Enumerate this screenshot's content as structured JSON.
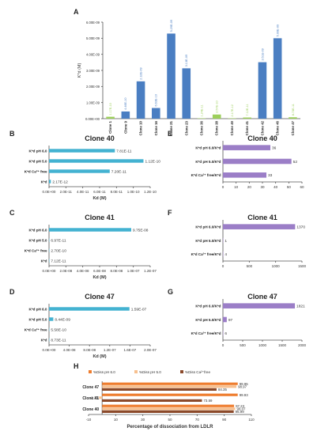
{
  "colors": {
    "blue": "#4a7ec2",
    "green": "#9ccf5a",
    "cyan": "#43b2d1",
    "purple": "#9b7ec7",
    "orange": "#ee7d2e",
    "peach": "#f7c08f",
    "brown": "#8b4a2b",
    "axis": "#555555"
  },
  "chart_data": [
    {
      "panel": "A",
      "type": "bar",
      "ylabel": "K*d (M)",
      "ylim": [
        0,
        6e-09
      ],
      "yticks": [
        "0.00E+00",
        "1.00E-09",
        "2.00E-09",
        "3.00E-09",
        "4.00E-09",
        "5.00E-09",
        "6.00E-09"
      ],
      "categories": [
        "Clone 1",
        "Clone 9",
        "Clone 10",
        "Clone 16",
        "Clone 21",
        "Clone 23",
        "Clone 36",
        "Clone 38",
        "Clone 40",
        "Clone 41",
        "Clone 42",
        "Clone 46",
        "Clone 47"
      ],
      "values": [
        1.17e-10,
        4.46e-10,
        2.32e-09,
        6.63e-10,
        5.29e-09,
        3.13e-09,
        1.24e-11,
        2.57e-10,
        2.17e-12,
        7.12e-11,
        3.51e-09,
        5e-09,
        8.73e-11
      ],
      "labels": [
        "1.17E-10",
        "4.46E-10",
        "2.32E-09",
        "6.63E-10",
        "5.29E-09",
        "3.13E-09",
        "1.24E-11",
        "2.57E-10",
        "2.17E-12",
        "7.12E-11",
        "3.51E-09",
        "5.00E-09",
        "8.73E-11"
      ],
      "highlight": [
        true,
        false,
        false,
        false,
        false,
        false,
        true,
        true,
        true,
        true,
        false,
        false,
        true
      ]
    },
    {
      "panel": "B",
      "type": "bar",
      "orientation": "horizontal",
      "title": "Clone 40",
      "xlabel": "Kd (M)",
      "xlim": [
        0,
        1.2e-10
      ],
      "xticks": [
        "0.0E+00",
        "2.0E-11",
        "4.0E-11",
        "6.0E-11",
        "8.0E-11",
        "1.0E-10",
        "1.2E-10"
      ],
      "categories": [
        "K*d pH 6.0",
        "K*d pH 5.0",
        "K*d Ca²⁺ free",
        "K*d"
      ],
      "values": [
        7.81e-11,
        1.12e-10,
        7.2e-11,
        2.17e-12
      ],
      "labels": [
        "7.81E-11",
        "1.12E-10",
        "7.20E-11",
        "2.17E-12"
      ]
    },
    {
      "panel": "C",
      "type": "bar",
      "orientation": "horizontal",
      "title": "Clone 41",
      "xlabel": "Kd (M)",
      "xlim": [
        0,
        1.2e-07
      ],
      "xticks": [
        "0.0E+00",
        "2.0E-08",
        "4.0E-08",
        "6.0E-08",
        "8.0E-08",
        "1.0E-07",
        "1.2E-07"
      ],
      "categories": [
        "K*d pH 6.0",
        "K*d pH 5.0",
        "K*d Ca²⁺ free",
        "K*d"
      ],
      "values": [
        9.75e-08,
        6.97e-11,
        2.7e-10,
        7.12e-11
      ],
      "labels": [
        "9.75E-08",
        "6.97E-11",
        "2.70E-10",
        "7.12E-11"
      ]
    },
    {
      "panel": "D",
      "type": "bar",
      "orientation": "horizontal",
      "title": "Clone 47",
      "xlabel": "Kd (M)",
      "xlim": [
        0,
        2e-07
      ],
      "xticks": [
        "0.0E+00",
        "4.0E-08",
        "8.0E-08",
        "1.2E-07",
        "1.6E-07",
        "2.0E-07"
      ],
      "categories": [
        "K*d pH 6.0",
        "K*d pH 5.0",
        "K*d Ca²⁺ free",
        "K*d"
      ],
      "values": [
        1.59e-07,
        8.44e-09,
        5.58e-10,
        8.73e-11
      ],
      "labels": [
        "1.59E-07",
        "8.44E-09",
        "5.58E-10",
        "8.73E-11"
      ]
    },
    {
      "panel": "E",
      "type": "bar",
      "orientation": "horizontal",
      "title": "Clone 40",
      "xlim": [
        0,
        60
      ],
      "xticks": [
        "0",
        "10",
        "20",
        "30",
        "40",
        "50",
        "60"
      ],
      "categories": [
        "K*d pH 6.0/K*d",
        "K*d pH 5.0/K*d",
        "K*d Ca²⁺ free/K*d"
      ],
      "values": [
        36,
        52,
        33
      ],
      "labels": [
        "36",
        "52",
        "33"
      ]
    },
    {
      "panel": "F",
      "type": "bar",
      "orientation": "horizontal",
      "title": "Clone 41",
      "xlim": [
        0,
        1500
      ],
      "xticks": [
        "0",
        "500",
        "1000",
        "1500"
      ],
      "categories": [
        "K*d pH 6.0/K*d",
        "K*d pH 5.0/K*d",
        "K*d Ca²⁺ free/K*d"
      ],
      "values": [
        1370,
        1,
        4
      ],
      "labels": [
        "1370",
        "1",
        "4"
      ]
    },
    {
      "panel": "G",
      "type": "bar",
      "orientation": "horizontal",
      "title": "Clone 47",
      "xlim": [
        0,
        2000
      ],
      "xticks": [
        "0",
        "500",
        "1000",
        "1500",
        "2000"
      ],
      "categories": [
        "K*d pH 6.0/K*d",
        "K*d pH 5.0/K*d",
        "K*d Ca²⁺ free/K*d"
      ],
      "values": [
        1821,
        97,
        6
      ],
      "labels": [
        "1821",
        "97",
        "6"
      ]
    },
    {
      "panel": "H",
      "type": "bar",
      "orientation": "horizontal",
      "xlabel": "Percentage of dissociation from LDLR",
      "xlim": [
        -10,
        110
      ],
      "xticks": [
        "-10",
        "10",
        "30",
        "50",
        "70",
        "90",
        "110"
      ],
      "legend_position": "top",
      "categories": [
        "Clone 47",
        "Clone 41",
        "Clone 40"
      ],
      "series": [
        {
          "name": "%Diss pH 6.0",
          "values": [
            99.95,
            99.93,
            97.23
          ],
          "labels": [
            "99.95",
            "99.93",
            "97.23"
          ]
        },
        {
          "name": "%Diss pH 5.0",
          "values": [
            98.97,
            -2.23,
            98.07
          ],
          "labels": [
            "98.97",
            "-2.23",
            "98.07"
          ]
        },
        {
          "name": "%Diss Ca²⁺free",
          "values": [
            84.35,
            73.59,
            96.99
          ],
          "labels": [
            "84.35",
            "73.59",
            "96.99"
          ]
        }
      ]
    }
  ]
}
